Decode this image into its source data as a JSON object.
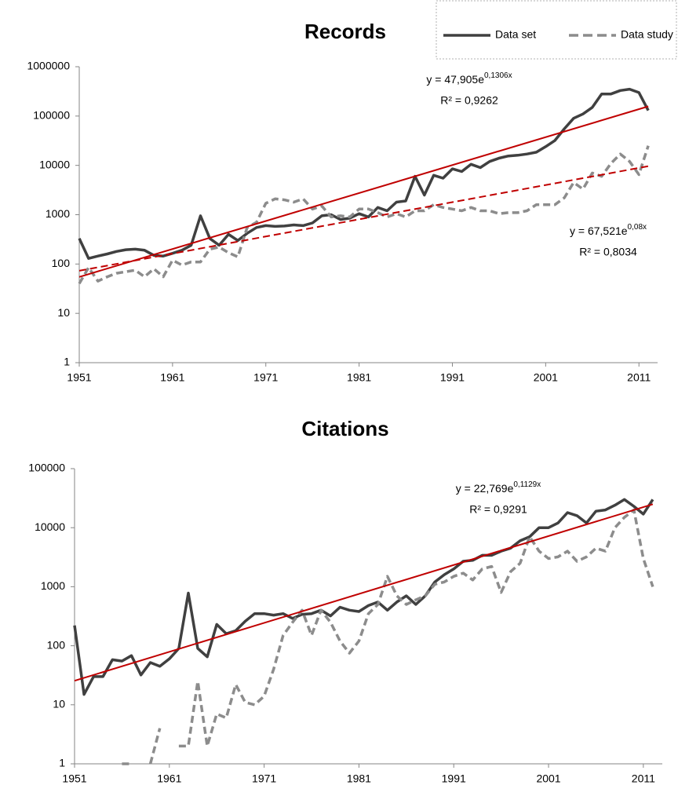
{
  "chart_data": [
    {
      "type": "line",
      "title": "Records",
      "log_scale": true,
      "grid": false,
      "legend": "top-right",
      "x": [
        1951,
        1952,
        1953,
        1954,
        1955,
        1956,
        1957,
        1958,
        1959,
        1960,
        1961,
        1962,
        1963,
        1964,
        1965,
        1966,
        1967,
        1968,
        1969,
        1970,
        1971,
        1972,
        1973,
        1974,
        1975,
        1976,
        1977,
        1978,
        1979,
        1980,
        1981,
        1982,
        1983,
        1984,
        1985,
        1986,
        1987,
        1988,
        1989,
        1990,
        1991,
        1992,
        1993,
        1994,
        1995,
        1996,
        1997,
        1998,
        1999,
        2000,
        2001,
        2002,
        2003,
        2004,
        2005,
        2006,
        2007,
        2008,
        2009,
        2010,
        2011,
        2012
      ],
      "xlim": [
        1951,
        2013
      ],
      "xticks": [
        1951,
        1961,
        1971,
        1981,
        1991,
        2001,
        2011
      ],
      "ylim": [
        1,
        1000000
      ],
      "yticks": [
        1,
        10,
        100,
        1000,
        10000,
        100000,
        1000000
      ],
      "series": [
        {
          "name": "Data set",
          "color": "#404040",
          "dashed": false,
          "values": [
            330,
            130,
            145,
            160,
            180,
            195,
            200,
            190,
            150,
            145,
            165,
            190,
            240,
            950,
            330,
            240,
            400,
            300,
            420,
            550,
            600,
            580,
            590,
            620,
            600,
            680,
            950,
            1000,
            800,
            850,
            1050,
            900,
            1400,
            1200,
            1800,
            1900,
            6000,
            2500,
            6300,
            5500,
            8500,
            7500,
            10500,
            9000,
            12000,
            14000,
            15500,
            16000,
            17000,
            18500,
            24000,
            32000,
            55000,
            90000,
            110000,
            150000,
            280000,
            280000,
            330000,
            350000,
            300000,
            130000
          ]
        },
        {
          "name": "Data study",
          "color": "#8c8c8c",
          "dashed": true,
          "values": [
            40,
            85,
            45,
            55,
            65,
            70,
            75,
            55,
            80,
            55,
            120,
            95,
            110,
            110,
            200,
            220,
            170,
            140,
            550,
            700,
            1700,
            2100,
            2000,
            1800,
            2100,
            1300,
            1500,
            900,
            950,
            900,
            1300,
            1300,
            1100,
            900,
            1050,
            900,
            1200,
            1200,
            1600,
            1400,
            1300,
            1200,
            1400,
            1200,
            1200,
            1050,
            1100,
            1100,
            1200,
            1600,
            1600,
            1600,
            2200,
            4500,
            3300,
            7000,
            6000,
            11000,
            17000,
            12000,
            6500,
            25000
          ]
        }
      ],
      "trendlines": [
        {
          "color": "#c00000",
          "dashed": false,
          "x": [
            1951,
            2012
          ],
          "values": [
            54.6,
            157000
          ]
        },
        {
          "color": "#c00000",
          "dashed": true,
          "x": [
            1951,
            2012
          ],
          "values": [
            73,
            9630
          ]
        }
      ],
      "annotations": [
        {
          "text": "y = 47,905e",
          "sup": "0,1306x",
          "r2": "R² = 0,9262"
        },
        {
          "text": "y = 67,521e",
          "sup": "0,08x",
          "r2": "R² = 0,8034"
        }
      ]
    },
    {
      "type": "line",
      "title": "Citations",
      "log_scale": true,
      "grid": false,
      "x": [
        1951,
        1952,
        1953,
        1954,
        1955,
        1956,
        1957,
        1958,
        1959,
        1960,
        1961,
        1962,
        1963,
        1964,
        1965,
        1966,
        1967,
        1968,
        1969,
        1970,
        1971,
        1972,
        1973,
        1974,
        1975,
        1976,
        1977,
        1978,
        1979,
        1980,
        1981,
        1982,
        1983,
        1984,
        1985,
        1986,
        1987,
        1988,
        1989,
        1990,
        1991,
        1992,
        1993,
        1994,
        1995,
        1996,
        1997,
        1998,
        1999,
        2000,
        2001,
        2002,
        2003,
        2004,
        2005,
        2006,
        2007,
        2008,
        2009,
        2010,
        2011,
        2012
      ],
      "xlim": [
        1951,
        2013
      ],
      "xticks": [
        1951,
        1961,
        1971,
        1981,
        1991,
        2001,
        2011
      ],
      "ylim": [
        1,
        100000
      ],
      "yticks": [
        1,
        10,
        100,
        1000,
        10000,
        100000
      ],
      "series": [
        {
          "name": "Data set",
          "color": "#404040",
          "dashed": false,
          "values": [
            220,
            15,
            30,
            30,
            58,
            55,
            68,
            32,
            52,
            45,
            60,
            90,
            780,
            90,
            65,
            230,
            160,
            180,
            260,
            350,
            350,
            330,
            350,
            290,
            340,
            350,
            400,
            320,
            450,
            400,
            380,
            480,
            550,
            400,
            550,
            700,
            500,
            700,
            1200,
            1600,
            2000,
            2700,
            2800,
            3400,
            3400,
            4000,
            4500,
            6000,
            7000,
            10000,
            10000,
            12000,
            18000,
            16000,
            12000,
            19000,
            20000,
            24000,
            30000,
            23000,
            17000,
            30000
          ]
        },
        {
          "name": "Data study",
          "color": "#8c8c8c",
          "dashed": true,
          "values": [
            null,
            null,
            null,
            null,
            null,
            1,
            1,
            null,
            1,
            4,
            null,
            2,
            2,
            25,
            2,
            7,
            6,
            22,
            11,
            10,
            14,
            40,
            150,
            250,
            400,
            150,
            400,
            250,
            120,
            75,
            120,
            350,
            500,
            1500,
            700,
            500,
            600,
            700,
            1100,
            1200,
            1500,
            1700,
            1300,
            2000,
            2200,
            800,
            1800,
            2500,
            7000,
            4000,
            3000,
            3200,
            4000,
            2700,
            3200,
            4500,
            4000,
            10000,
            15000,
            20000,
            3000,
            1000
          ]
        }
      ],
      "trendlines": [
        {
          "color": "#c00000",
          "dashed": false,
          "x": [
            1951,
            2012
          ],
          "values": [
            25.5,
            24970
          ]
        }
      ],
      "annotations": [
        {
          "text": "y = 22,769e",
          "sup": "0,1129x",
          "r2": "R² = 0,9291"
        }
      ]
    }
  ]
}
